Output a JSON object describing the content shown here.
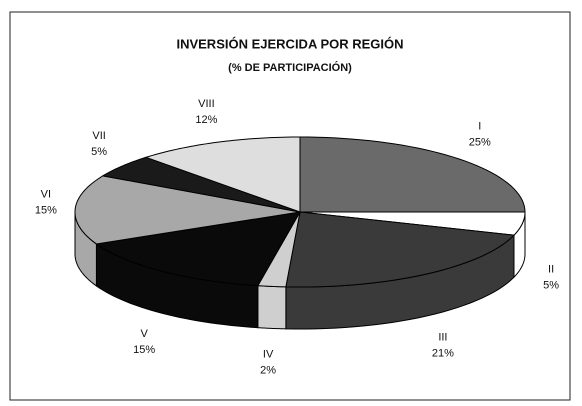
{
  "chart_data": {
    "type": "pie",
    "title": "INVERSIÓN EJERCIDA POR REGIÓN",
    "subtitle": "(% DE PARTICIPACIÓN)",
    "categories": [
      "I",
      "II",
      "III",
      "IV",
      "V",
      "VI",
      "VII",
      "VIII"
    ],
    "values": [
      25,
      5,
      21,
      2,
      15,
      15,
      5,
      12
    ],
    "value_labels": [
      "25%",
      "5%",
      "21%",
      "2%",
      "15%",
      "15%",
      "5%",
      "12%"
    ],
    "colors": [
      "#6a6a6a",
      "#ffffff",
      "#3a3a3a",
      "#cfcfcf",
      "#0a0a0a",
      "#a8a8a8",
      "#1a1a1a",
      "#dedede"
    ]
  }
}
